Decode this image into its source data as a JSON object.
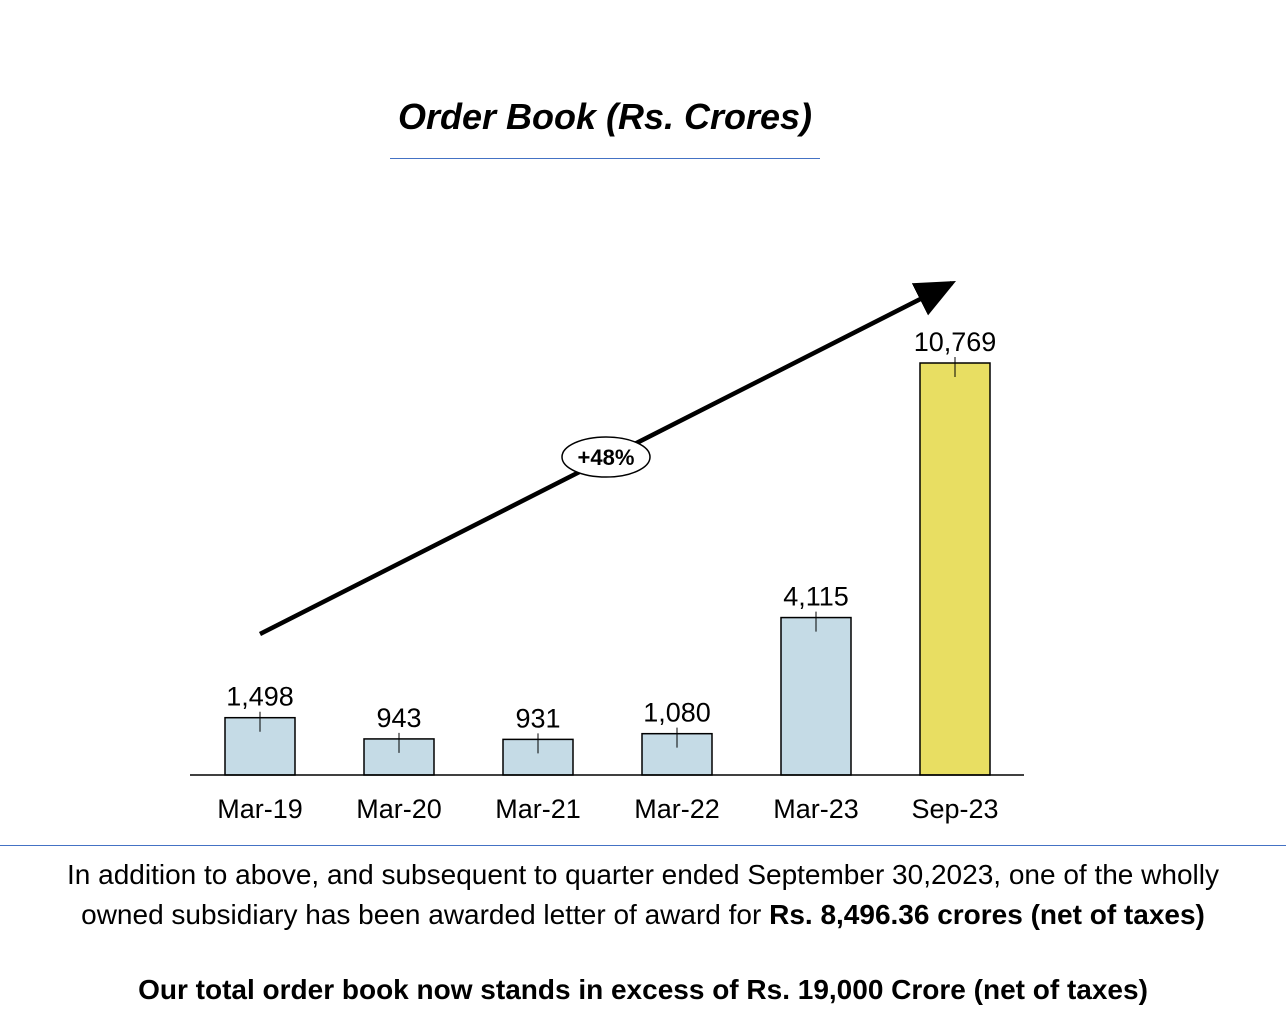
{
  "chart_data": {
    "type": "bar",
    "title": "Order Book  (Rs. Crores)",
    "categories": [
      "Mar-19",
      "Mar-20",
      "Mar-21",
      "Mar-22",
      "Mar-23",
      "Sep-23"
    ],
    "values": [
      1498,
      943,
      931,
      1080,
      4115,
      10769
    ],
    "value_labels": [
      "1,498",
      "943",
      "931",
      "1,080",
      "4,115",
      "10,769"
    ],
    "bar_colors": [
      "#c5dbe6",
      "#c5dbe6",
      "#c5dbe6",
      "#c5dbe6",
      "#c5dbe6",
      "#e8de62"
    ],
    "grid": false,
    "legend": "none",
    "annotation": {
      "label": "+48%",
      "arrow_color": "#000000"
    }
  },
  "footnote": {
    "line1": "In addition to above, and subsequent to quarter ended September 30,2023, one of the wholly",
    "line2_prefix": "owned subsidiary has been awarded letter of award for ",
    "line2_bold": "Rs. 8,496.36 crores (net of taxes)"
  },
  "summary": "Our total order book now stands in excess of Rs. 19,000 Crore (net of taxes)"
}
